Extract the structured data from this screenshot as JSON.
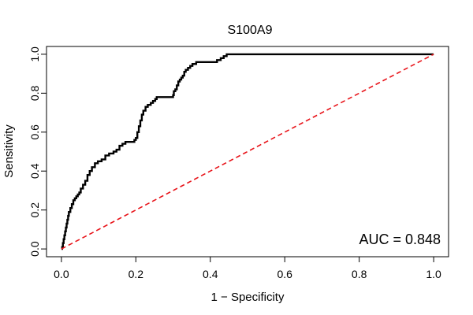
{
  "chart_data": {
    "type": "line",
    "title": "S100A9",
    "xlabel": "1 − Specificity",
    "ylabel": "Sensitivity",
    "xlim": [
      -0.04,
      1.04
    ],
    "ylim": [
      -0.04,
      1.04
    ],
    "x_ticks": [
      0.0,
      0.2,
      0.4,
      0.6,
      0.8,
      1.0
    ],
    "x_tick_labels": [
      "0.0",
      "0.2",
      "0.4",
      "0.6",
      "0.8",
      "1.0"
    ],
    "y_ticks": [
      0.0,
      0.2,
      0.4,
      0.6,
      0.8,
      1.0
    ],
    "y_tick_labels": [
      "0.0",
      "0.2",
      "0.4",
      "0.6",
      "0.8",
      "1.0"
    ],
    "grid": false,
    "annotation": "AUC = 0.848",
    "series": [
      {
        "name": "ROC",
        "color": "#000000",
        "style": "solid-step",
        "x": [
          0.0,
          0.002,
          0.004,
          0.006,
          0.008,
          0.01,
          0.012,
          0.014,
          0.016,
          0.018,
          0.02,
          0.024,
          0.028,
          0.032,
          0.036,
          0.04,
          0.044,
          0.048,
          0.052,
          0.058,
          0.064,
          0.07,
          0.076,
          0.082,
          0.09,
          0.098,
          0.108,
          0.118,
          0.128,
          0.14,
          0.148,
          0.156,
          0.164,
          0.172,
          0.18,
          0.188,
          0.196,
          0.2,
          0.204,
          0.208,
          0.212,
          0.216,
          0.22,
          0.226,
          0.232,
          0.24,
          0.246,
          0.252,
          0.256,
          0.26,
          0.27,
          0.28,
          0.29,
          0.3,
          0.302,
          0.306,
          0.31,
          0.314,
          0.318,
          0.322,
          0.326,
          0.33,
          0.334,
          0.34,
          0.346,
          0.352,
          0.358,
          0.362,
          0.376,
          0.392,
          0.408,
          0.418,
          0.428,
          0.436,
          0.444,
          0.46,
          0.5,
          0.6,
          0.7,
          0.8,
          0.9,
          1.0
        ],
        "y": [
          0.0,
          0.01,
          0.03,
          0.05,
          0.07,
          0.09,
          0.11,
          0.13,
          0.15,
          0.17,
          0.19,
          0.21,
          0.23,
          0.25,
          0.26,
          0.27,
          0.28,
          0.29,
          0.31,
          0.33,
          0.35,
          0.38,
          0.4,
          0.42,
          0.44,
          0.45,
          0.46,
          0.48,
          0.49,
          0.5,
          0.51,
          0.53,
          0.54,
          0.55,
          0.55,
          0.55,
          0.56,
          0.57,
          0.6,
          0.63,
          0.66,
          0.69,
          0.71,
          0.73,
          0.74,
          0.75,
          0.76,
          0.77,
          0.78,
          0.78,
          0.78,
          0.78,
          0.78,
          0.79,
          0.81,
          0.82,
          0.84,
          0.86,
          0.87,
          0.88,
          0.89,
          0.91,
          0.92,
          0.93,
          0.94,
          0.95,
          0.95,
          0.96,
          0.96,
          0.96,
          0.96,
          0.97,
          0.98,
          0.99,
          1.0,
          1.0,
          1.0,
          1.0,
          1.0,
          1.0,
          1.0,
          1.0
        ]
      },
      {
        "name": "Reference",
        "color": "#e8141a",
        "style": "dashed",
        "x": [
          0.0,
          1.0
        ],
        "y": [
          0.0,
          1.0
        ]
      }
    ]
  }
}
